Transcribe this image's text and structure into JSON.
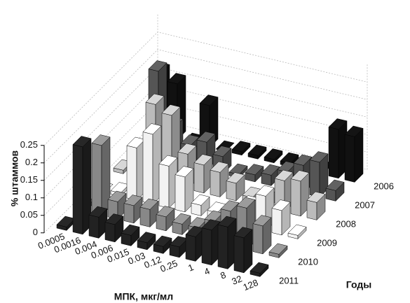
{
  "chart_data": {
    "type": "bar3d",
    "categories": [
      "0.0005",
      "0.0016",
      "0.004",
      "0.006",
      "0.015",
      "0.03",
      "0.12",
      "0.25",
      "1",
      "4",
      "8",
      "32",
      "128"
    ],
    "series": [
      {
        "name": "2006",
        "color": "#111111",
        "values": [
          0.18,
          0.16,
          0,
          0.12,
          0,
          0.01,
          0.01,
          0.01,
          0.01,
          0.01,
          0.01,
          0.14,
          0.13
        ]
      },
      {
        "name": "2007",
        "color": "#555555",
        "values": [
          0.01,
          0.25,
          0.1,
          0.06,
          0.08,
          0.05,
          0.01,
          0.02,
          0.03,
          0.05,
          0.08,
          0.1,
          0.03
        ]
      },
      {
        "name": "2008",
        "color": "#bbbbbb",
        "values": [
          0.01,
          0.05,
          0.22,
          0.2,
          0.1,
          0.08,
          0.07,
          0.05,
          0.02,
          0.03,
          0.09,
          0.1,
          0.05
        ]
      },
      {
        "name": "2009",
        "color": "#f2f2f2",
        "values": [
          0,
          0.01,
          0.15,
          0.2,
          0.12,
          0.1,
          0.03,
          0.02,
          0.02,
          0.06,
          0.1,
          0.07,
          0.01
        ]
      },
      {
        "name": "2010",
        "color": "#888888",
        "values": [
          0.01,
          0.2,
          0.05,
          0.05,
          0.05,
          0.04,
          0.03,
          0.03,
          0.06,
          0.1,
          0.12,
          0.08,
          0.01
        ]
      },
      {
        "name": "2011",
        "color": "#222222",
        "values": [
          0.01,
          0.25,
          0.06,
          0.05,
          0.03,
          0.02,
          0.02,
          0.03,
          0.07,
          0.1,
          0.12,
          0.1,
          0.01
        ]
      }
    ],
    "zlim": [
      0,
      0.3
    ],
    "zticks": [
      0,
      0.05,
      0.1,
      0.15,
      0.2,
      0.25
    ],
    "x_label": "МПК, мкг/мл",
    "y_label": "Годы",
    "z_label": "% штаммов",
    "grid": true
  }
}
